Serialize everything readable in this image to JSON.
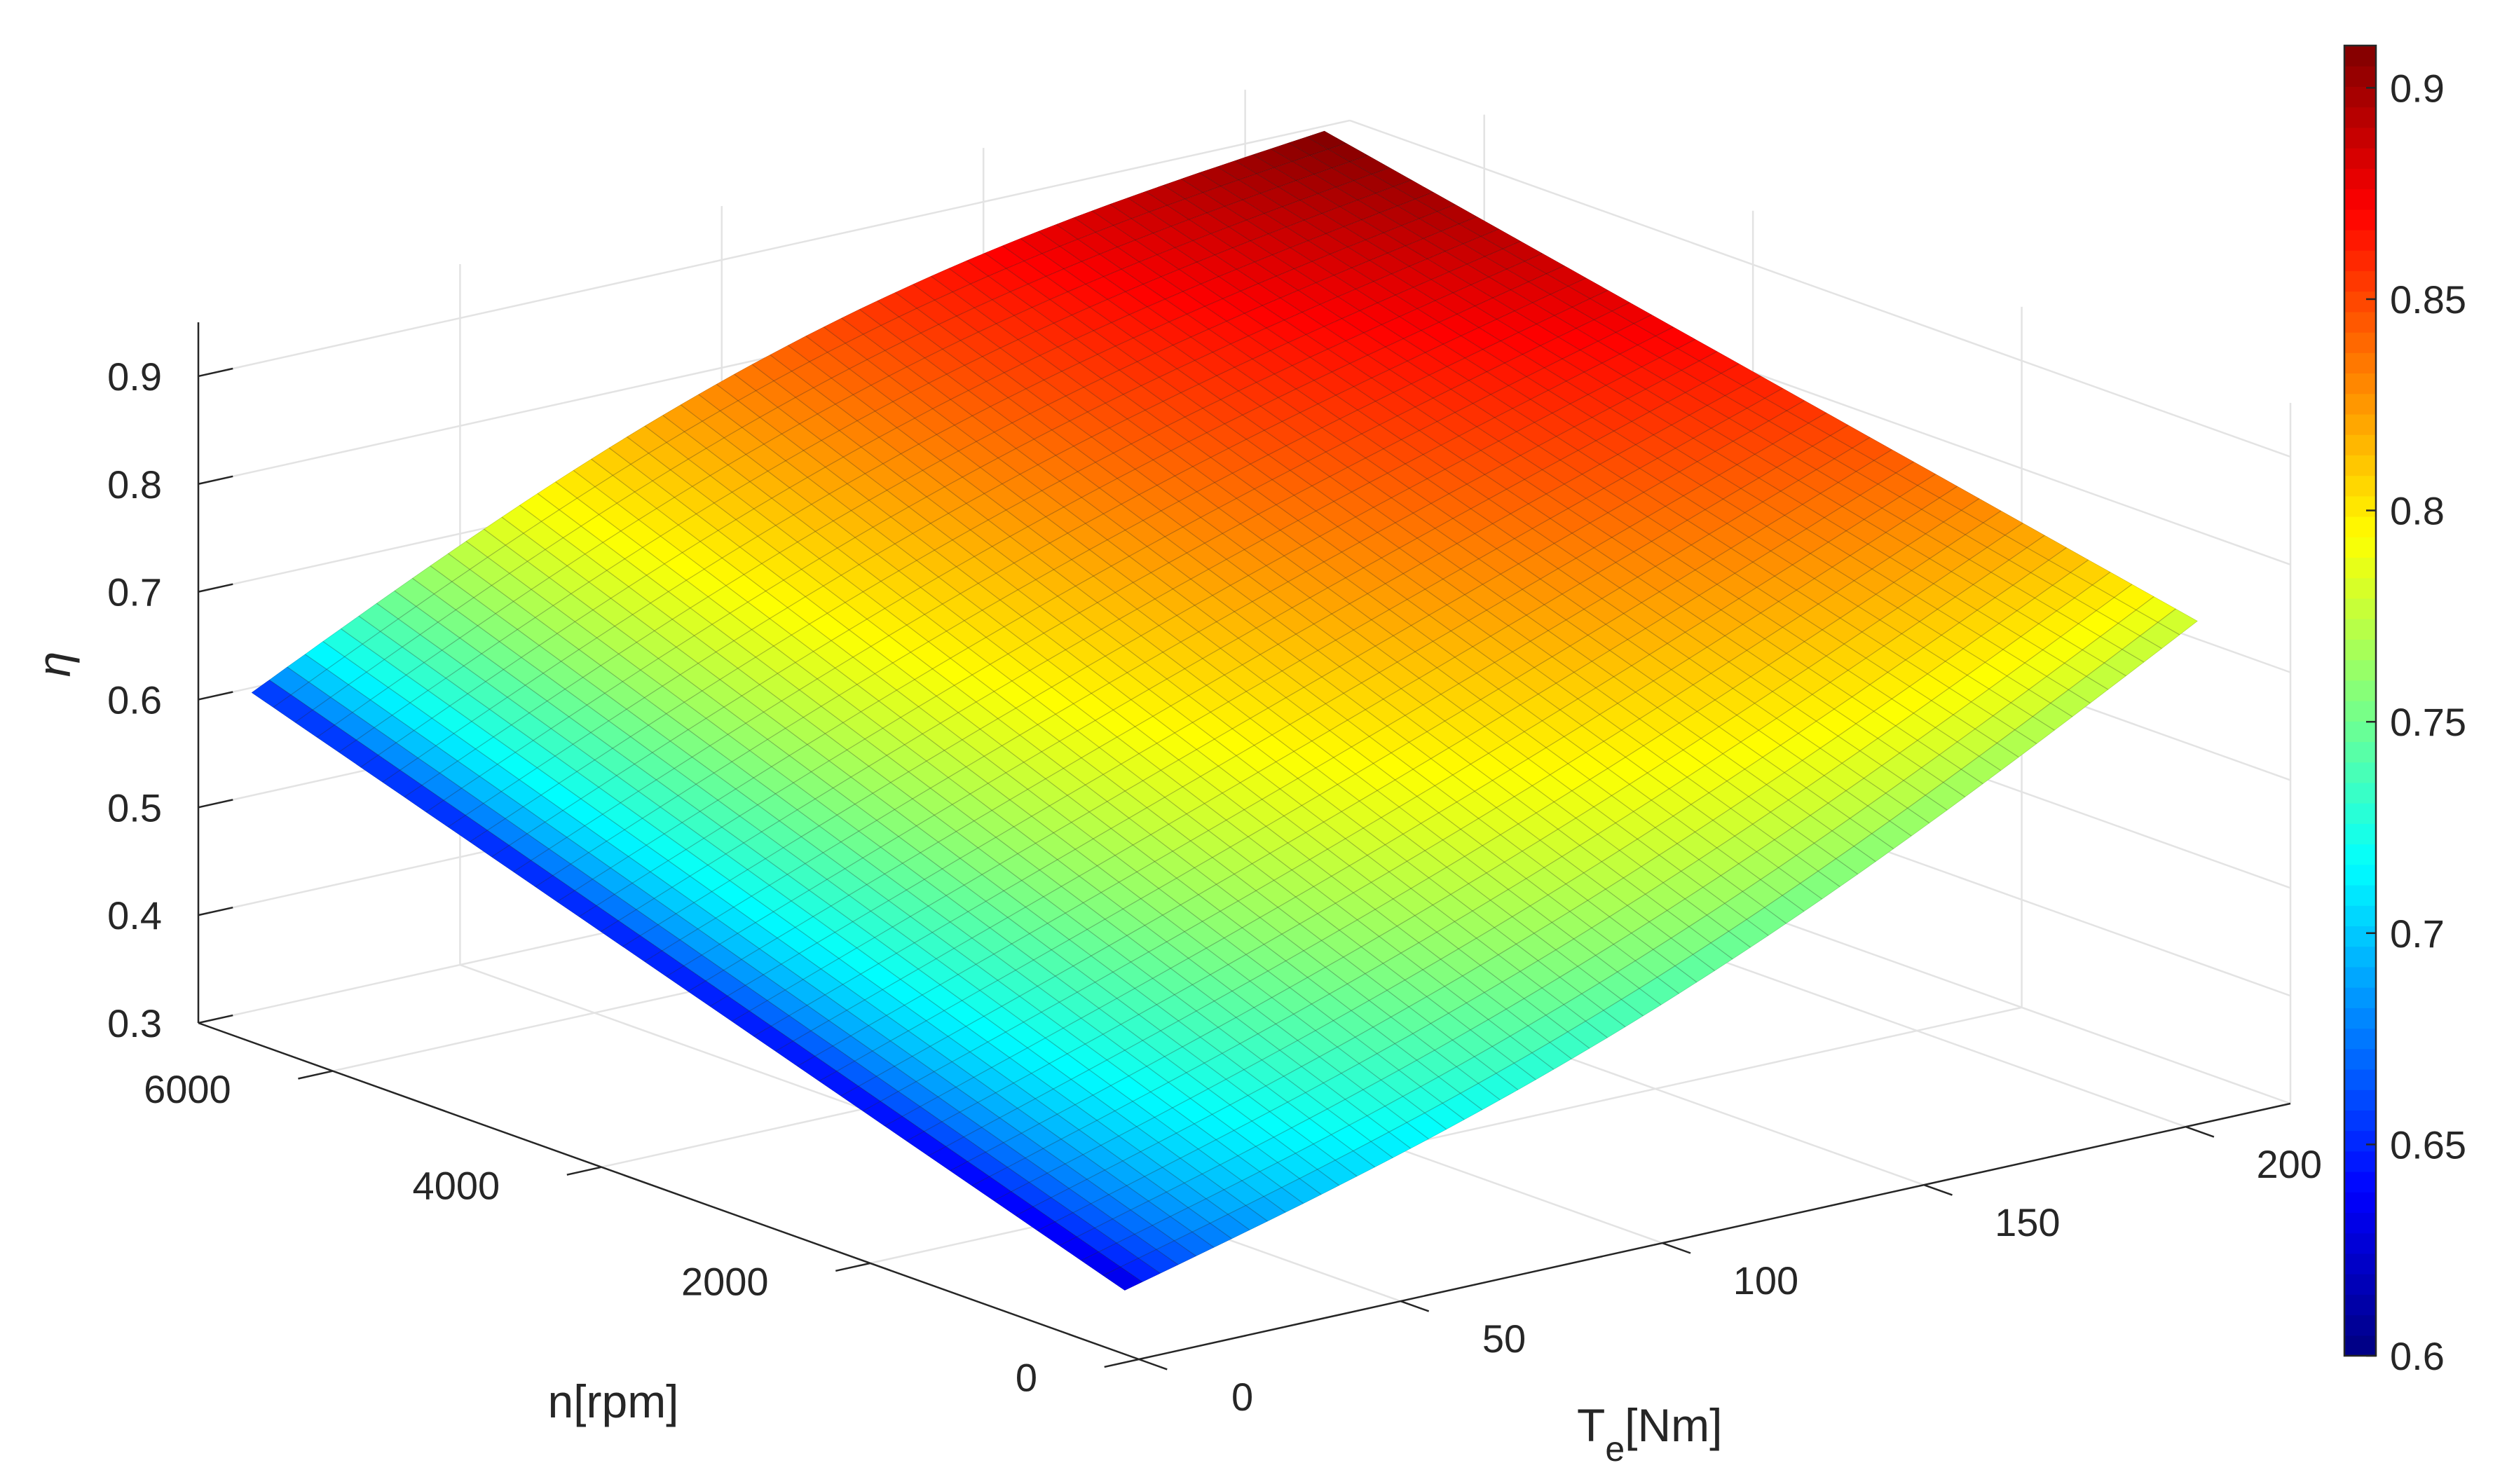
{
  "chart_data": {
    "type": "surface",
    "title": "",
    "xlabel": "T",
    "xlabel_sub": "e",
    "xlabel_unit": "[Nm]",
    "ylabel": "n[rpm]",
    "zlabel": "η",
    "x_ticks": [
      "0",
      "50",
      "100",
      "150",
      "200"
    ],
    "y_ticks": [
      "0",
      "2000",
      "4000",
      "6000"
    ],
    "z_ticks": [
      "0.3",
      "0.4",
      "0.5",
      "0.6",
      "0.7",
      "0.8",
      "0.9"
    ],
    "colorbar_ticks": [
      "0.6",
      "0.65",
      "0.7",
      "0.75",
      "0.8",
      "0.85",
      "0.9"
    ],
    "xlim": [
      0,
      220
    ],
    "ylim": [
      0,
      7000
    ],
    "zlim": [
      0.3,
      0.95
    ],
    "clim": [
      0.6,
      0.91
    ],
    "colormap": "jet",
    "grid": true,
    "colorbar": "right",
    "surface_corners": [
      {
        "T": 5,
        "n": 300,
        "eta": 0.345
      },
      {
        "T": 5,
        "n": 6800,
        "eta": 0.61
      },
      {
        "T": 210,
        "n": 6800,
        "eta": 0.91
      },
      {
        "T": 210,
        "n": 300,
        "eta": 0.745
      }
    ],
    "view": {
      "azimuth": -37.5,
      "elevation": 30
    }
  }
}
